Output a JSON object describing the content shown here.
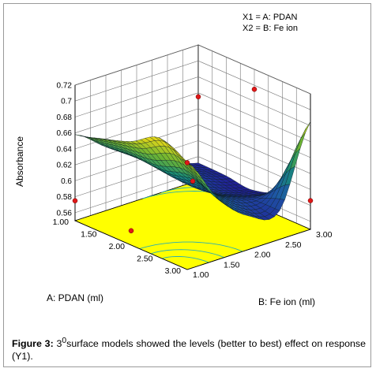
{
  "legend": {
    "line1": "X1 = A: PDAN",
    "line2": "X2 = B: Fe ion"
  },
  "caption": {
    "label": "Figure 3:",
    "sup": "0",
    "prefix": "3",
    "text": "surface models showed the levels (better to best) effect on response (Y1)."
  },
  "chart_data": {
    "type": "surface",
    "zlabel": "Absorbance",
    "xlabel": "A: PDAN (ml)",
    "ylabel": "B: Fe ion (ml)",
    "x_ticks": [
      "1.00",
      "1.50",
      "2.00",
      "2.50",
      "3.00"
    ],
    "y_ticks": [
      "1.00",
      "1.50",
      "2.00",
      "2.50",
      "3.00"
    ],
    "z_ticks": [
      "0.56",
      "0.58",
      "0.6",
      "0.62",
      "0.64",
      "0.66",
      "0.68",
      "0.7",
      "0.72"
    ],
    "xlim": [
      1,
      3
    ],
    "ylim": [
      1,
      3
    ],
    "zlim": [
      0.55,
      0.72
    ],
    "grid_pdan": [
      1.0,
      1.5,
      2.0,
      2.5,
      3.0
    ],
    "grid_fe": [
      1.0,
      1.5,
      2.0,
      2.5,
      3.0
    ],
    "absorbance_grid": [
      [
        0.658,
        0.63,
        0.607,
        0.587,
        0.572
      ],
      [
        0.668,
        0.633,
        0.606,
        0.585,
        0.571
      ],
      [
        0.68,
        0.632,
        0.598,
        0.578,
        0.568
      ],
      [
        0.7,
        0.64,
        0.601,
        0.585,
        0.59
      ],
      [
        0.684,
        0.626,
        0.592,
        0.586,
        0.685
      ]
    ],
    "design_points": [
      {
        "pdan": 1.0,
        "fe": 1.0,
        "absorbance": 0.575
      },
      {
        "pdan": 3.0,
        "fe": 1.0,
        "absorbance": 0.684
      },
      {
        "pdan": 1.0,
        "fe": 3.0,
        "absorbance": 0.655
      },
      {
        "pdan": 3.0,
        "fe": 3.0,
        "absorbance": 0.586
      },
      {
        "pdan": 2.0,
        "fe": 2.0,
        "absorbance": 0.605
      },
      {
        "pdan": 2.0,
        "fe": 1.0,
        "absorbance": 0.568
      },
      {
        "pdan": 2.0,
        "fe": 3.0,
        "absorbance": 0.695
      }
    ]
  }
}
